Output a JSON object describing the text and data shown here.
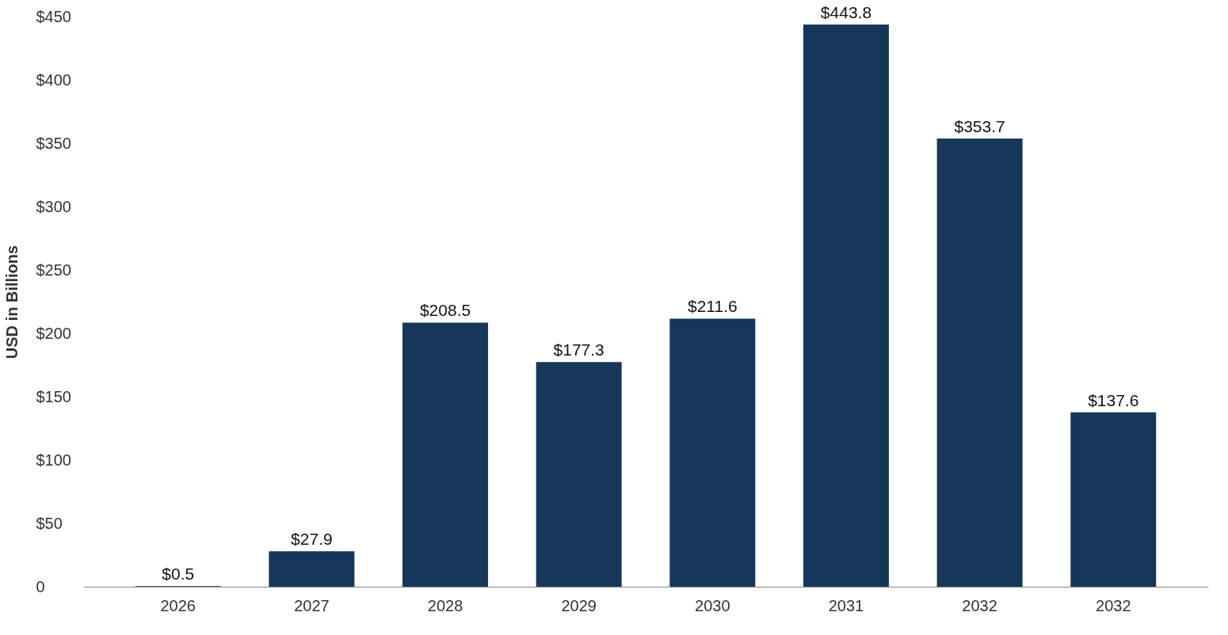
{
  "chart_data": {
    "type": "bar",
    "ylabel": "USD in Billions",
    "categories": [
      "2026",
      "2027",
      "2028",
      "2029",
      "2030",
      "2031",
      "2032",
      "2032"
    ],
    "values": [
      0.5,
      27.9,
      208.5,
      177.3,
      211.6,
      443.8,
      353.7,
      137.6
    ],
    "value_labels": [
      "$0.5",
      "$27.9",
      "$208.5",
      "$177.3",
      "$211.6",
      "$443.8",
      "$353.7",
      "$137.6"
    ],
    "color": "#17375a",
    "ylim": [
      0,
      450
    ],
    "yticks": [
      0,
      {
        "value": 50,
        "label": "$50"
      },
      {
        "value": 100,
        "label": "$100"
      },
      {
        "value": 150,
        "label": "$150"
      },
      {
        "value": 200,
        "label": "$200"
      },
      {
        "value": 250,
        "label": "$250"
      },
      {
        "value": 300,
        "label": "$300"
      },
      {
        "value": 350,
        "label": "$350"
      },
      {
        "value": 400,
        "label": "$400"
      },
      {
        "value": 450,
        "label": "$450"
      }
    ],
    "grid": false
  }
}
